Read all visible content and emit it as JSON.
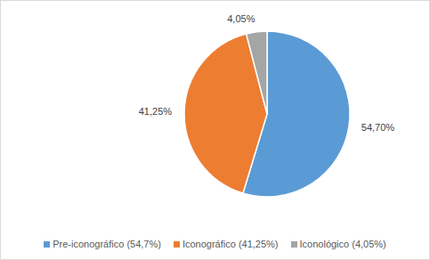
{
  "chart_data": {
    "type": "pie",
    "categories": [
      "Pre-iconográfico (54,7%)",
      "Iconográfico (41,25%)",
      "Iconológico (4,05%)"
    ],
    "values": [
      54.7,
      41.25,
      4.05
    ],
    "value_labels": [
      "54,70%",
      "41,25%",
      "4,05%"
    ],
    "colors": [
      "#5b9bd5",
      "#ed7d31",
      "#a5a5a5"
    ],
    "data_labels": true,
    "legend": "bottom"
  }
}
